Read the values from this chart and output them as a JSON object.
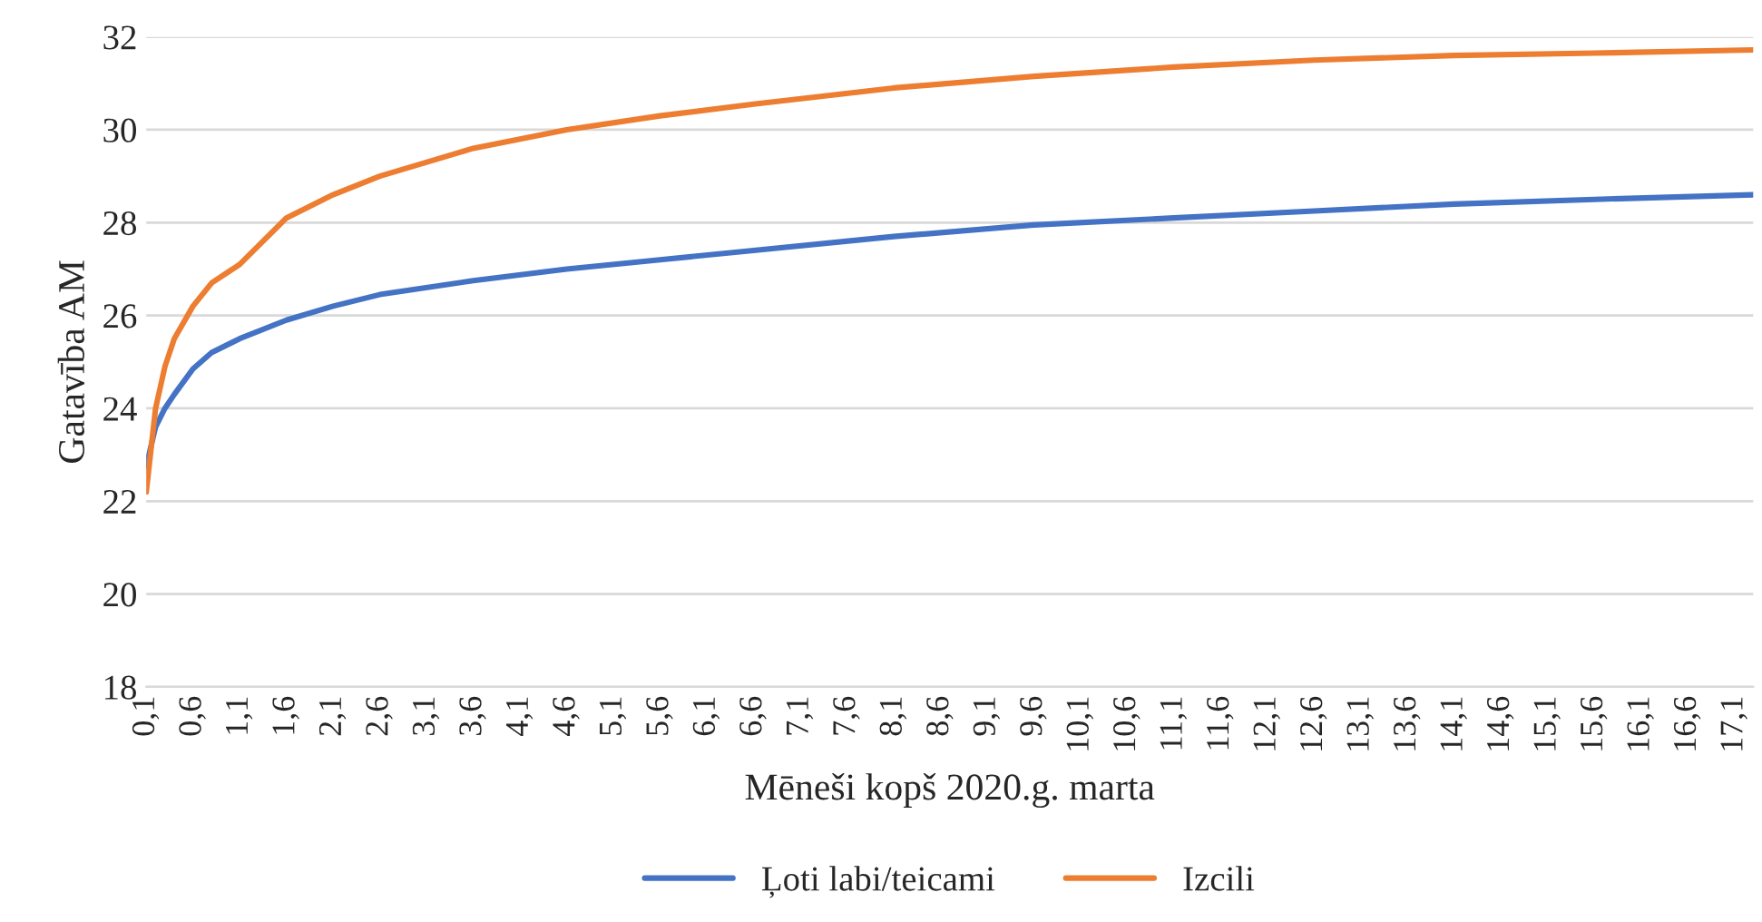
{
  "chart_data": {
    "type": "line",
    "xlabel": "Mēneši kopš 2020.g. marta",
    "ylabel": "Gatavība AM",
    "ylim": [
      18,
      32
    ],
    "yticks": [
      18,
      20,
      22,
      24,
      26,
      28,
      30,
      32
    ],
    "xlim": [
      0.1,
      17.3
    ],
    "xticks": [
      {
        "value": 0.1,
        "label": "0,1"
      },
      {
        "value": 0.6,
        "label": "0,6"
      },
      {
        "value": 1.1,
        "label": "1,1"
      },
      {
        "value": 1.6,
        "label": "1,6"
      },
      {
        "value": 2.1,
        "label": "2,1"
      },
      {
        "value": 2.6,
        "label": "2,6"
      },
      {
        "value": 3.1,
        "label": "3,1"
      },
      {
        "value": 3.6,
        "label": "3,6"
      },
      {
        "value": 4.1,
        "label": "4,1"
      },
      {
        "value": 4.6,
        "label": "4,6"
      },
      {
        "value": 5.1,
        "label": "5,1"
      },
      {
        "value": 5.6,
        "label": "5,6"
      },
      {
        "value": 6.1,
        "label": "6,1"
      },
      {
        "value": 6.6,
        "label": "6,6"
      },
      {
        "value": 7.1,
        "label": "7,1"
      },
      {
        "value": 7.6,
        "label": "7,6"
      },
      {
        "value": 8.1,
        "label": "8,1"
      },
      {
        "value": 8.6,
        "label": "8,6"
      },
      {
        "value": 9.1,
        "label": "9,1"
      },
      {
        "value": 9.6,
        "label": "9,6"
      },
      {
        "value": 10.1,
        "label": "10,1"
      },
      {
        "value": 10.6,
        "label": "10,6"
      },
      {
        "value": 11.1,
        "label": "11,1"
      },
      {
        "value": 11.6,
        "label": "11,6"
      },
      {
        "value": 12.1,
        "label": "12,1"
      },
      {
        "value": 12.6,
        "label": "12,6"
      },
      {
        "value": 13.1,
        "label": "13,1"
      },
      {
        "value": 13.6,
        "label": "13,6"
      },
      {
        "value": 14.1,
        "label": "14,1"
      },
      {
        "value": 14.6,
        "label": "14,6"
      },
      {
        "value": 15.1,
        "label": "15,1"
      },
      {
        "value": 15.6,
        "label": "15,6"
      },
      {
        "value": 16.1,
        "label": "16,1"
      },
      {
        "value": 16.6,
        "label": "16,6"
      },
      {
        "value": 17.1,
        "label": "17,1"
      }
    ],
    "x": [
      0.1,
      0.2,
      0.3,
      0.4,
      0.6,
      0.8,
      1.1,
      1.6,
      2.1,
      2.6,
      3.6,
      4.6,
      5.6,
      6.6,
      8.1,
      9.6,
      11.1,
      12.6,
      14.1,
      15.6,
      17.3
    ],
    "series": [
      {
        "name": "Ļoti labi/teicami",
        "color": "#4472c4",
        "values": [
          22.75,
          23.6,
          24.0,
          24.3,
          24.85,
          25.2,
          25.5,
          25.9,
          26.2,
          26.45,
          26.75,
          27.0,
          27.2,
          27.4,
          27.7,
          27.95,
          28.1,
          28.25,
          28.4,
          28.5,
          28.6
        ]
      },
      {
        "name": "Izcili",
        "color": "#ed7d31",
        "values": [
          22.2,
          24.0,
          24.9,
          25.5,
          26.2,
          26.7,
          27.1,
          28.1,
          28.6,
          29.0,
          29.6,
          30.0,
          30.3,
          30.55,
          30.9,
          31.15,
          31.35,
          31.5,
          31.6,
          31.65,
          31.72
        ]
      }
    ],
    "grid": "y",
    "legend": "bottom",
    "line_style": "solid",
    "marker": "none"
  }
}
